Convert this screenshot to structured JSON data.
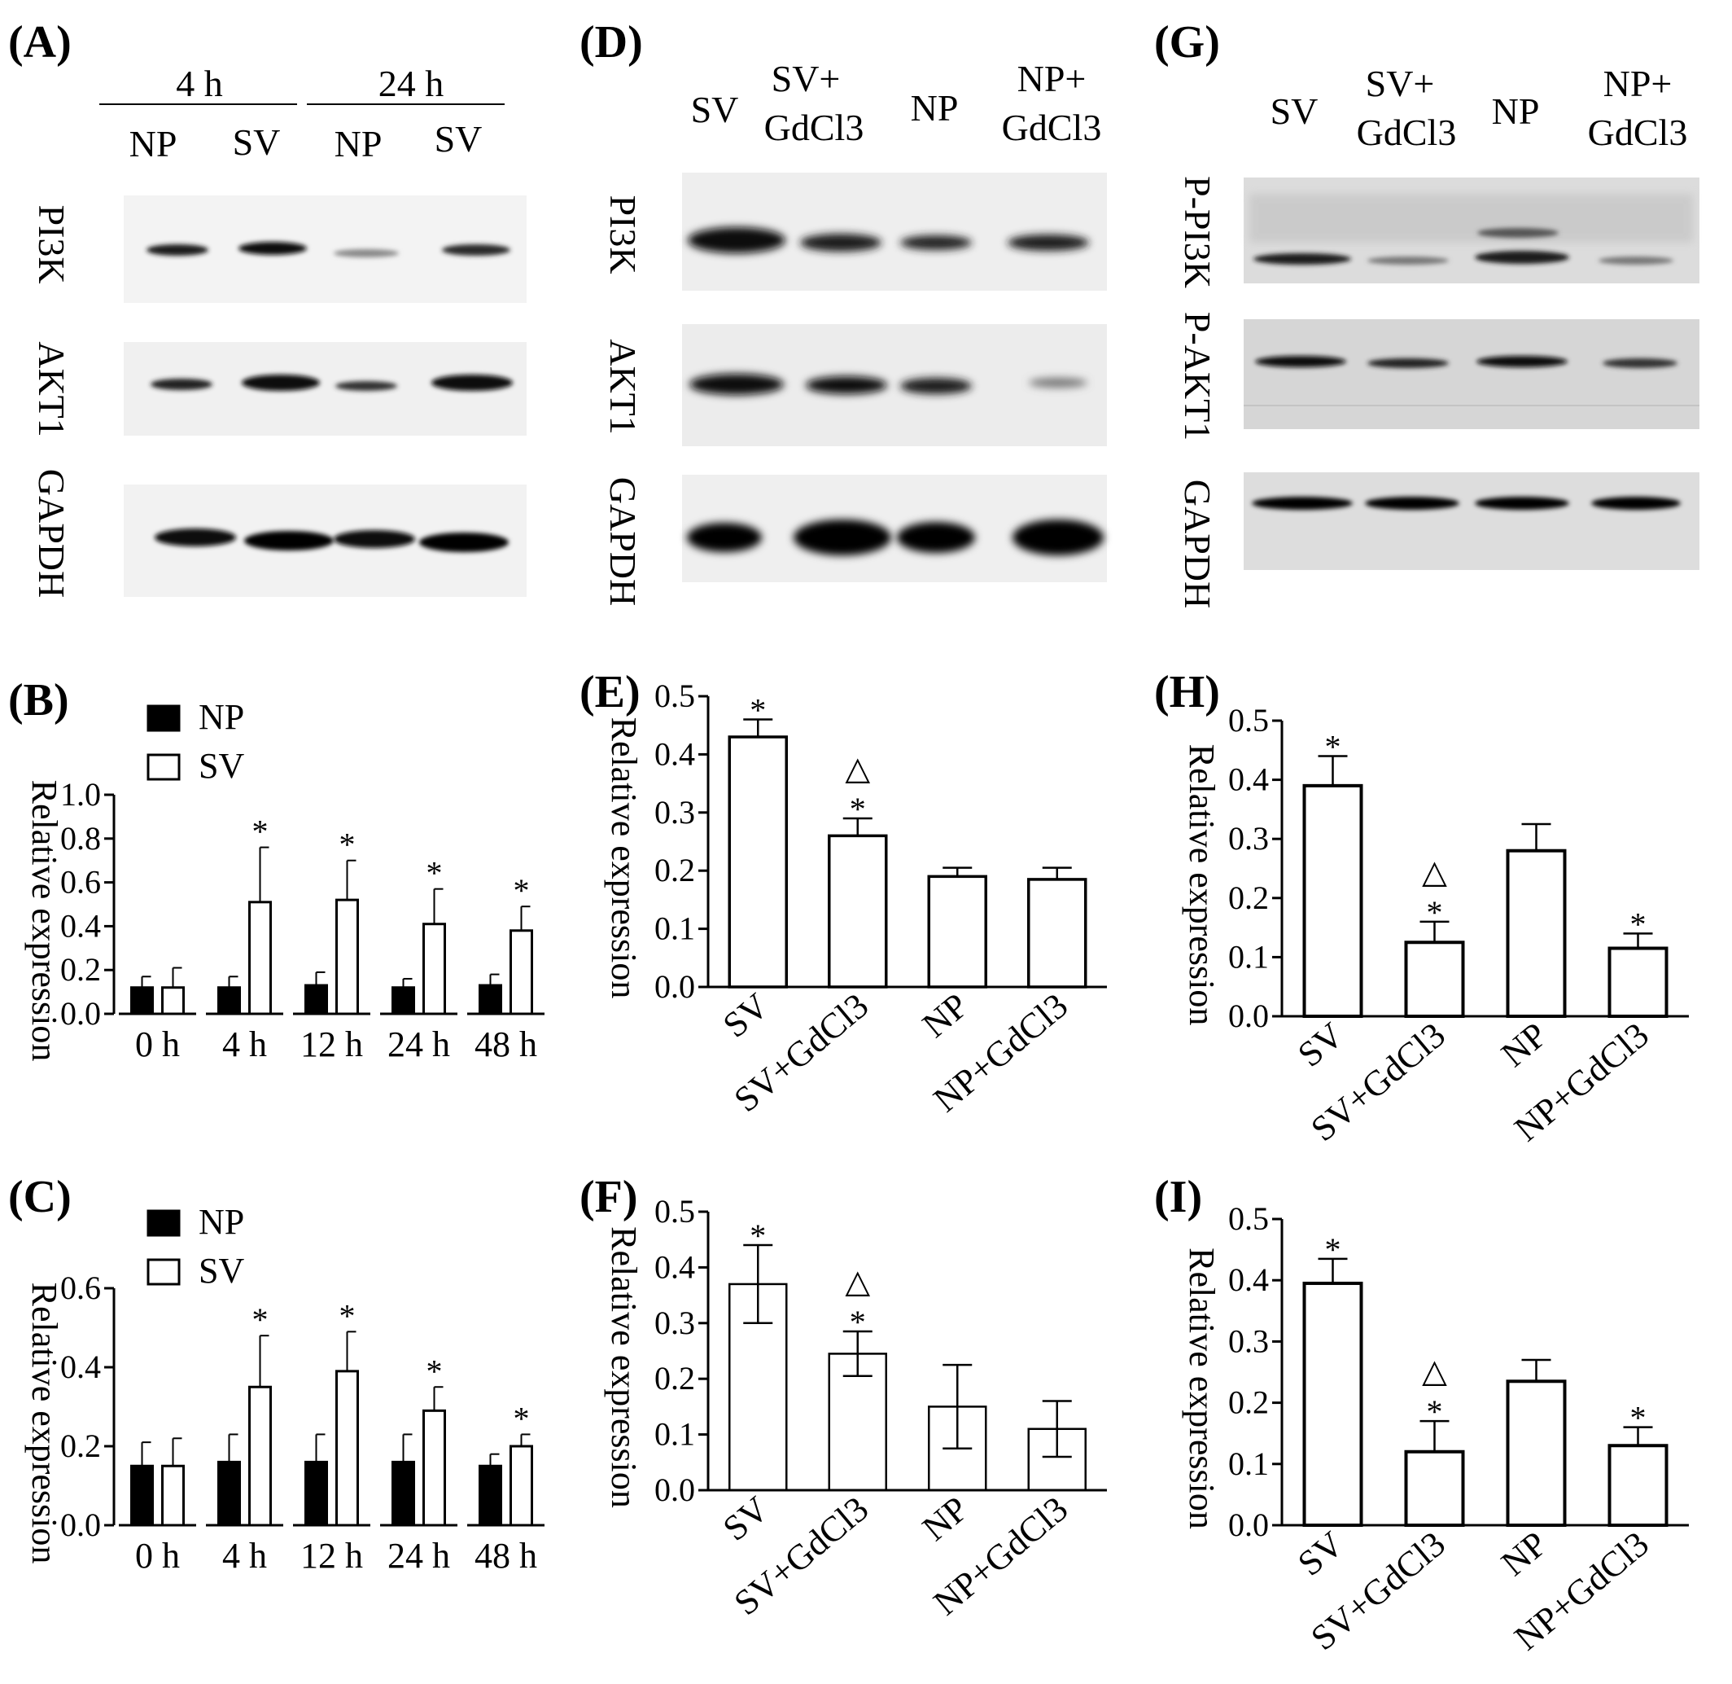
{
  "panels": {
    "A": "(A)",
    "B": "(B)",
    "C": "(C)",
    "D": "(D)",
    "E": "(E)",
    "F": "(F)",
    "G": "(G)",
    "H": "(H)",
    "I": "(I)"
  },
  "blots": {
    "A": {
      "group_labels": [
        "4 h",
        "24 h"
      ],
      "lane_labels": [
        "NP",
        "SV",
        "NP",
        "SV"
      ],
      "rows": [
        "PI3K",
        "AKT1",
        "GAPDH"
      ]
    },
    "D": {
      "lane_labels": [
        "SV",
        "SV+",
        "GdCl3",
        "NP",
        "NP+",
        "GdCl3"
      ],
      "rows": [
        "PI3K",
        "AKT1",
        "GAPDH"
      ]
    },
    "G": {
      "lane_labels": [
        "SV",
        "SV+",
        "GdCl3",
        "NP",
        "NP+",
        "GdCl3"
      ],
      "rows": [
        "P-PI3K",
        "P-AKT1",
        "GAPDH"
      ]
    }
  },
  "chart_data": [
    {
      "panel": "B",
      "type": "bar",
      "ylabel": "Relative expression",
      "ylim": [
        0,
        1.0
      ],
      "yticks": [
        "0.0",
        "0.2",
        "0.4",
        "0.6",
        "0.8",
        "1.0"
      ],
      "categories": [
        "0 h",
        "4 h",
        "12 h",
        "24 h",
        "48 h"
      ],
      "series": [
        {
          "name": "NP",
          "color": "#000000",
          "values": [
            0.12,
            0.12,
            0.13,
            0.12,
            0.13
          ],
          "errors": [
            0.05,
            0.05,
            0.06,
            0.04,
            0.05
          ]
        },
        {
          "name": "SV",
          "color": "#ffffff",
          "values": [
            0.12,
            0.51,
            0.52,
            0.41,
            0.38
          ],
          "errors": [
            0.09,
            0.25,
            0.18,
            0.16,
            0.11
          ]
        }
      ],
      "annotations": [
        "",
        "*",
        "*",
        "*",
        "*"
      ],
      "legend": "top-left"
    },
    {
      "panel": "C",
      "type": "bar",
      "ylabel": "Relative expression",
      "ylim": [
        0,
        0.6
      ],
      "yticks": [
        "0.0",
        "0.2",
        "0.4",
        "0.6"
      ],
      "categories": [
        "0 h",
        "4 h",
        "12 h",
        "24 h",
        "48 h"
      ],
      "series": [
        {
          "name": "NP",
          "color": "#000000",
          "values": [
            0.15,
            0.16,
            0.16,
            0.16,
            0.15
          ],
          "errors": [
            0.06,
            0.07,
            0.07,
            0.07,
            0.03
          ]
        },
        {
          "name": "SV",
          "color": "#ffffff",
          "values": [
            0.15,
            0.35,
            0.39,
            0.29,
            0.2
          ],
          "errors": [
            0.07,
            0.13,
            0.1,
            0.06,
            0.03
          ]
        }
      ],
      "annotations": [
        "",
        "*",
        "*",
        "*",
        "*"
      ],
      "legend": "top-left"
    },
    {
      "panel": "E",
      "type": "bar",
      "ylabel": "Relative expression",
      "ylim": [
        0,
        0.5
      ],
      "yticks": [
        "0.0",
        "0.1",
        "0.2",
        "0.3",
        "0.4",
        "0.5"
      ],
      "categories": [
        "SV",
        "SV+GdCl3",
        "NP",
        "NP+GdCl3"
      ],
      "values": [
        0.43,
        0.26,
        0.19,
        0.185
      ],
      "errors": [
        0.03,
        0.03,
        0.015,
        0.02
      ],
      "annotations": [
        "*",
        "△*",
        "",
        ""
      ]
    },
    {
      "panel": "F",
      "type": "bar",
      "ylabel": "Relative expression",
      "ylim": [
        0,
        0.5
      ],
      "yticks": [
        "0.0",
        "0.1",
        "0.2",
        "0.3",
        "0.4",
        "0.5"
      ],
      "categories": [
        "SV",
        "SV+GdCl3",
        "NP",
        "NP+GdCl3"
      ],
      "values": [
        0.37,
        0.245,
        0.15,
        0.11
      ],
      "errors": [
        0.07,
        0.04,
        0.075,
        0.05
      ],
      "annotations": [
        "*",
        "△*",
        "",
        ""
      ]
    },
    {
      "panel": "H",
      "type": "bar",
      "ylabel": "Relative expression",
      "ylim": [
        0,
        0.5
      ],
      "yticks": [
        "0.0",
        "0.1",
        "0.2",
        "0.3",
        "0.4",
        "0.5"
      ],
      "categories": [
        "SV",
        "SV+GdCl3",
        "NP",
        "NP+GdCl3"
      ],
      "values": [
        0.39,
        0.125,
        0.28,
        0.115
      ],
      "errors": [
        0.05,
        0.035,
        0.045,
        0.025
      ],
      "annotations": [
        "*",
        "△*",
        "",
        "*"
      ]
    },
    {
      "panel": "I",
      "type": "bar",
      "ylabel": "Relative expression",
      "ylim": [
        0,
        0.5
      ],
      "yticks": [
        "0.0",
        "0.1",
        "0.2",
        "0.3",
        "0.4",
        "0.5"
      ],
      "categories": [
        "SV",
        "SV+GdCl3",
        "NP",
        "NP+GdCl3"
      ],
      "values": [
        0.395,
        0.12,
        0.235,
        0.13
      ],
      "errors": [
        0.04,
        0.05,
        0.035,
        0.03
      ],
      "annotations": [
        "*",
        "△*",
        "",
        "*"
      ]
    }
  ]
}
